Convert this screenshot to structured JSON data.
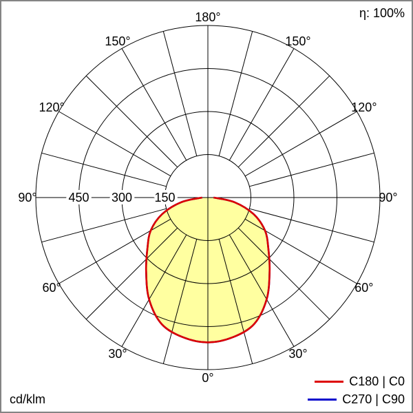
{
  "chart_data": {
    "type": "polar-line",
    "description": "Luminous intensity distribution diagram",
    "efficiency_label": "η: 100%",
    "unit_label": "cd/klm",
    "angle_labels": [
      "0°",
      "30°",
      "60°",
      "90°",
      "120°",
      "150°",
      "180°"
    ],
    "spoke_step_deg": 15,
    "ring_values": [
      150,
      300,
      450,
      600
    ],
    "ring_labels": [
      "450",
      "300",
      "150"
    ],
    "gamma_deg": [
      0,
      10,
      20,
      30,
      40,
      50,
      60,
      70,
      80,
      90
    ],
    "symmetric": true,
    "series": [
      {
        "name": "C180 | C0",
        "color": "#dd0000",
        "values": [
          505,
          495,
          470,
          410,
          335,
          275,
          230,
          170,
          95,
          20
        ]
      },
      {
        "name": "C270 | C90",
        "color": "#0000cc",
        "values": [
          505,
          495,
          470,
          410,
          335,
          275,
          230,
          170,
          95,
          20
        ]
      }
    ],
    "fill_color": "#ffffa0",
    "grid_color": "#000000",
    "text_color": "#000000",
    "background_color": "#ffffff",
    "frame_color": "#848484",
    "legend_position": "bottom-right"
  }
}
